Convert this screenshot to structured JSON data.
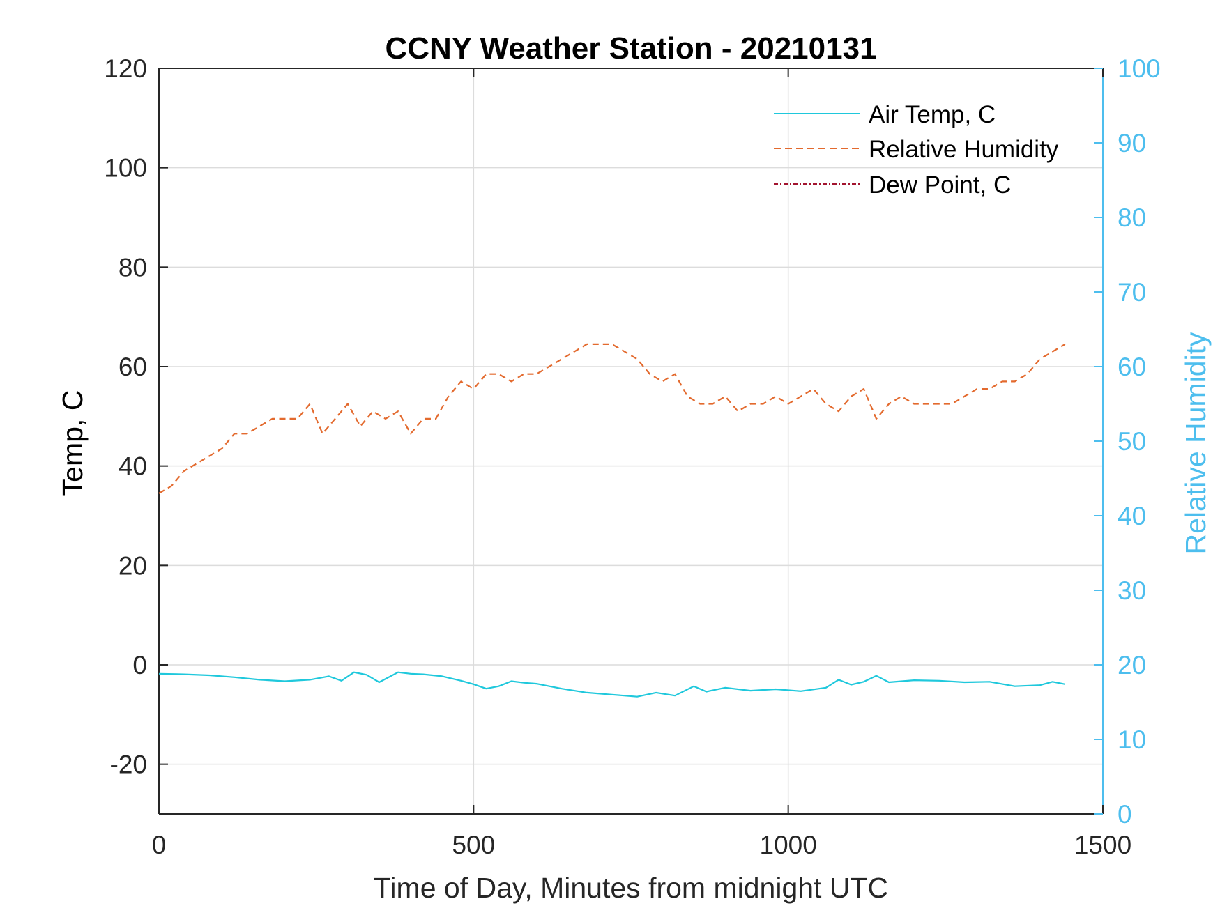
{
  "chart_data": {
    "type": "line",
    "title": "CCNY Weather Station - 20210131",
    "xlabel": "Time of Day, Minutes from midnight UTC",
    "ylabel_left": "Temp, C",
    "ylabel_right": "Relative Humidity",
    "xlim": [
      0,
      1500
    ],
    "ylim_left": [
      -30,
      120
    ],
    "ylim_right": [
      0,
      100
    ],
    "x_ticks": [
      0,
      500,
      1000,
      1500
    ],
    "x_tick_labels": [
      "0",
      "500",
      "1000",
      "1500"
    ],
    "y_left_ticks": [
      -20,
      0,
      20,
      40,
      60,
      80,
      100,
      120
    ],
    "y_left_tick_labels": [
      "-20",
      "0",
      "20",
      "40",
      "60",
      "80",
      "100",
      "120"
    ],
    "y_right_ticks": [
      0,
      10,
      20,
      30,
      40,
      50,
      60,
      70,
      80,
      90,
      100
    ],
    "y_right_tick_labels": [
      "0",
      "10",
      "20",
      "30",
      "40",
      "50",
      "60",
      "70",
      "80",
      "90",
      "100"
    ],
    "grid": true,
    "legend_position": "top-right",
    "series": [
      {
        "name": "Air Temp, C",
        "axis": "left",
        "style": "solid",
        "color": "#1FC8DC",
        "x": [
          0,
          40,
          80,
          120,
          160,
          200,
          240,
          270,
          290,
          310,
          330,
          350,
          380,
          400,
          420,
          450,
          480,
          500,
          520,
          540,
          560,
          580,
          600,
          640,
          680,
          720,
          760,
          790,
          820,
          850,
          870,
          900,
          940,
          980,
          1020,
          1060,
          1080,
          1100,
          1120,
          1140,
          1160,
          1200,
          1240,
          1280,
          1320,
          1360,
          1400,
          1420,
          1440
        ],
        "values": [
          -1.8,
          -1.9,
          -2.1,
          -2.5,
          -3.0,
          -3.3,
          -3.0,
          -2.3,
          -3.2,
          -1.5,
          -2.0,
          -3.5,
          -1.5,
          -1.8,
          -1.9,
          -2.3,
          -3.2,
          -3.9,
          -4.8,
          -4.3,
          -3.3,
          -3.6,
          -3.8,
          -4.8,
          -5.6,
          -6.0,
          -6.4,
          -5.6,
          -6.2,
          -4.3,
          -5.4,
          -4.6,
          -5.2,
          -4.9,
          -5.3,
          -4.6,
          -3.0,
          -4.0,
          -3.4,
          -2.2,
          -3.5,
          -3.1,
          -3.2,
          -3.5,
          -3.4,
          -4.3,
          -4.1,
          -3.4,
          -3.9
        ]
      },
      {
        "name": "Relative Humidity",
        "axis": "right",
        "style": "dashed",
        "color": "#E36A2E",
        "x": [
          0,
          20,
          40,
          60,
          80,
          100,
          120,
          140,
          160,
          180,
          200,
          220,
          240,
          260,
          280,
          300,
          320,
          340,
          360,
          380,
          400,
          420,
          440,
          460,
          480,
          500,
          520,
          540,
          560,
          580,
          600,
          620,
          640,
          660,
          680,
          700,
          720,
          740,
          760,
          780,
          800,
          820,
          840,
          860,
          880,
          900,
          920,
          940,
          960,
          980,
          1000,
          1020,
          1040,
          1060,
          1080,
          1100,
          1120,
          1140,
          1160,
          1180,
          1200,
          1220,
          1240,
          1260,
          1280,
          1300,
          1320,
          1340,
          1360,
          1380,
          1400,
          1420,
          1440
        ],
        "values": [
          43,
          44,
          46,
          47,
          48,
          49,
          51,
          51,
          52,
          53,
          53,
          53,
          55,
          51,
          53,
          55,
          52,
          54,
          53,
          54,
          51,
          53,
          53,
          56,
          58,
          57,
          59,
          59,
          58,
          59,
          59,
          60,
          61,
          62,
          63,
          63,
          63,
          62,
          61,
          59,
          58,
          59,
          56,
          55,
          55,
          56,
          54,
          55,
          55,
          56,
          55,
          56,
          57,
          55,
          54,
          56,
          57,
          53,
          55,
          56,
          55,
          55,
          55,
          55,
          56,
          57,
          57,
          58,
          58,
          59,
          61,
          62,
          63
        ]
      },
      {
        "name": "Dew Point, C",
        "axis": "left",
        "style": "dash-dot",
        "color": "#A2142F",
        "x": [],
        "values": []
      }
    ]
  }
}
